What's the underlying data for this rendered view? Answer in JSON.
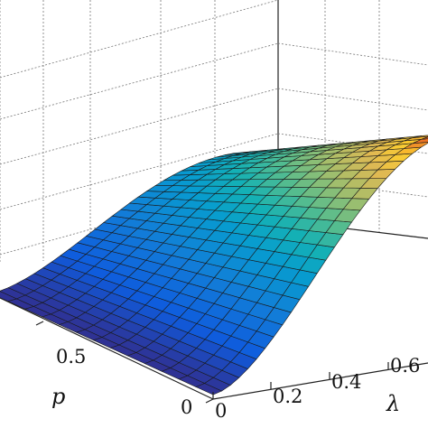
{
  "chart_data": {
    "type": "surface",
    "title": "",
    "x_axis": {
      "label": "λ",
      "ticks": [
        "0",
        "0.2",
        "0.4",
        "0.6"
      ],
      "range": [
        0,
        0.7
      ]
    },
    "p_axis": {
      "label": "p",
      "ticks": [
        "0",
        "0.5"
      ],
      "range": [
        0,
        1
      ]
    },
    "grid": true,
    "box": true,
    "colormap": "parula",
    "x_values": [
      0,
      0.025,
      0.05,
      0.075,
      0.1,
      0.125,
      0.15,
      0.175,
      0.2,
      0.225,
      0.25,
      0.275,
      0.3,
      0.325,
      0.35,
      0.375,
      0.4,
      0.425,
      0.45,
      0.475,
      0.5,
      0.525,
      0.55,
      0.575,
      0.6,
      0.625,
      0.65,
      0.675,
      0.7
    ],
    "p_values": [
      0,
      0.0769,
      0.1538,
      0.2308,
      0.3077,
      0.3846,
      0.4615,
      0.5385,
      0.6154,
      0.6923,
      0.7692,
      0.8462,
      0.9231,
      1
    ],
    "surface_profile": {
      "description_free_values": "peak near λ≈0.7, p≈0",
      "peak_at_x": 0.7,
      "peak_at_p": 0
    }
  },
  "axes": {
    "x_label": "λ",
    "p_label": "p",
    "x_ticks": [
      "0",
      "0.2",
      "0.4",
      "0.6"
    ],
    "p_ticks": [
      "0",
      "0.5"
    ]
  }
}
